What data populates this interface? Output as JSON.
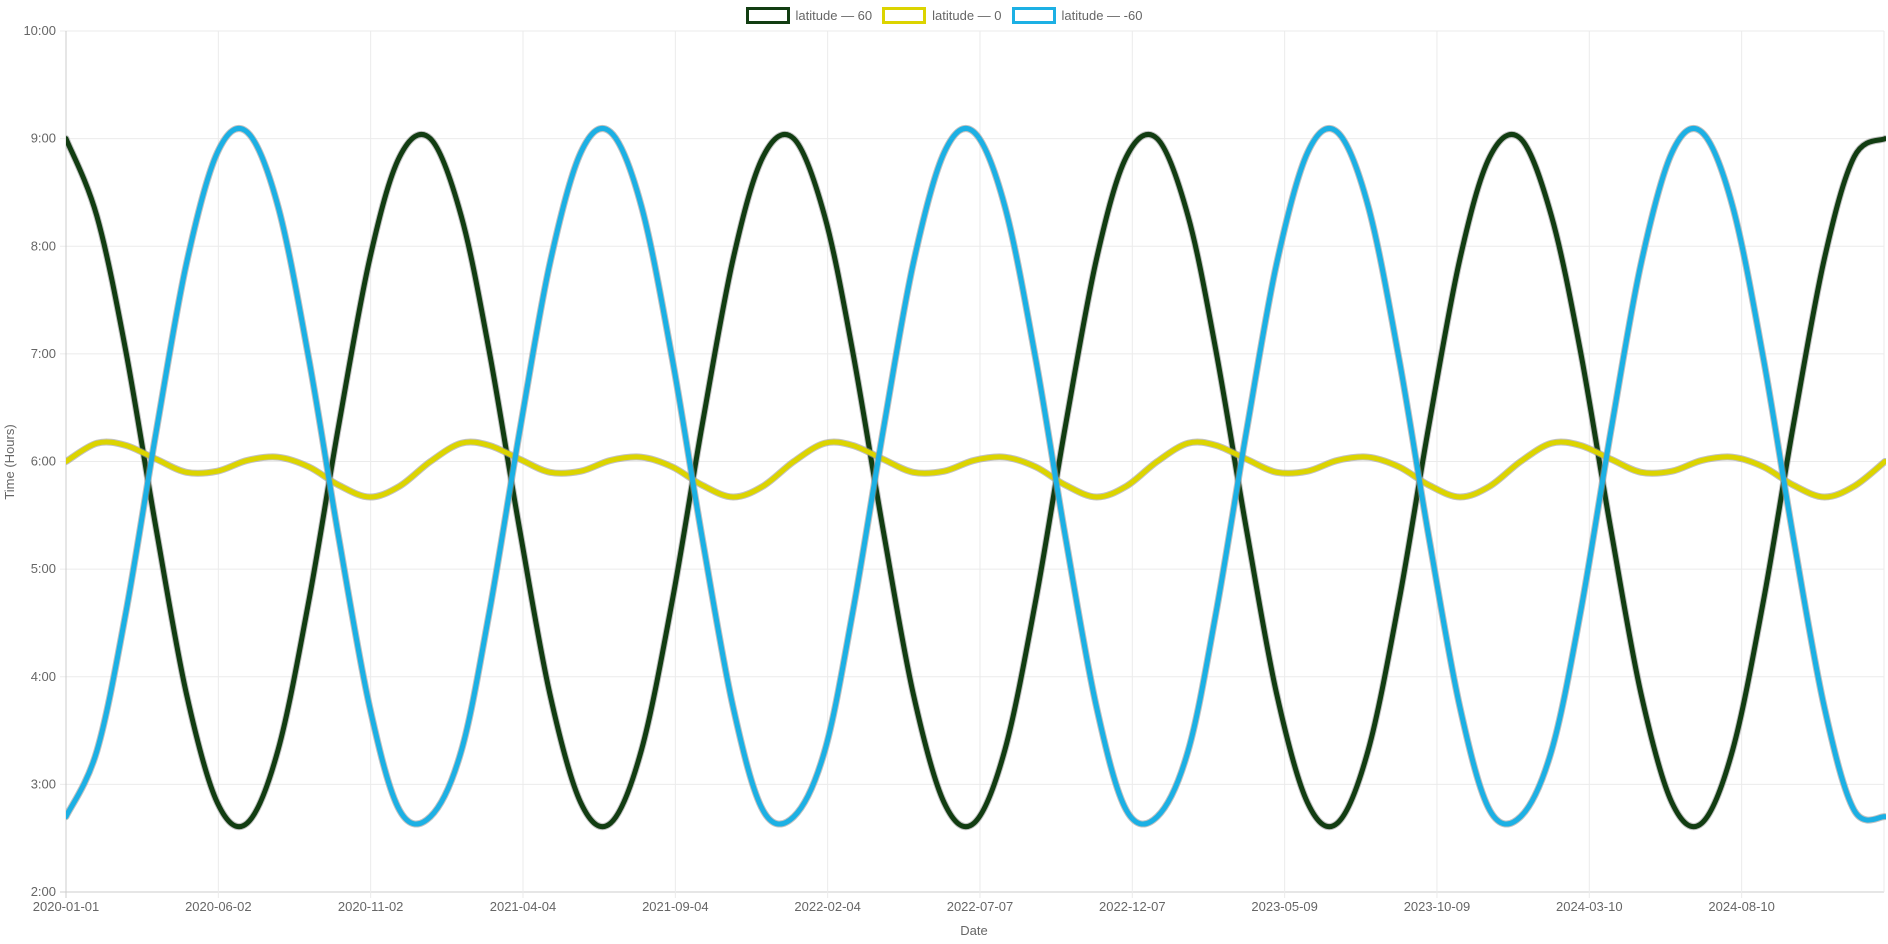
{
  "chart_data": {
    "type": "line",
    "xlabel": "Date",
    "ylabel": "Time (Hours)",
    "ylim": [
      2,
      10
    ],
    "xlim": [
      "2020-01-01",
      "2024-12-31"
    ],
    "y_ticks": [
      "2:00",
      "3:00",
      "4:00",
      "5:00",
      "6:00",
      "7:00",
      "8:00",
      "9:00",
      "10:00"
    ],
    "x_ticks": [
      "2020-01-01",
      "2020-06-02",
      "2020-11-02",
      "2021-04-04",
      "2021-09-04",
      "2022-02-04",
      "2022-07-07",
      "2022-12-07",
      "2023-05-09",
      "2023-10-09",
      "2024-03-10",
      "2024-08-10"
    ],
    "grid": true,
    "legend_position": "top-center",
    "x_start": "2020-01-01",
    "x_step": "1 month",
    "series": [
      {
        "name": "latitude — 60",
        "color": "#123d12",
        "values": [
          9.0,
          8.28,
          7.03,
          5.35,
          3.84,
          2.83,
          2.64,
          3.32,
          4.71,
          6.34,
          7.88,
          8.83,
          9.0,
          8.28,
          7.03,
          5.35,
          3.84,
          2.83,
          2.64,
          3.32,
          4.71,
          6.34,
          7.88,
          8.83,
          9.0,
          8.28,
          7.03,
          5.35,
          3.84,
          2.83,
          2.64,
          3.32,
          4.71,
          6.34,
          7.88,
          8.83,
          9.0,
          8.28,
          7.03,
          5.35,
          3.84,
          2.83,
          2.64,
          3.32,
          4.71,
          6.34,
          7.88,
          8.83,
          9.0,
          8.28,
          7.03,
          5.35,
          3.84,
          2.83,
          2.64,
          3.32,
          4.71,
          6.34,
          7.88,
          8.83,
          9.0
        ]
      },
      {
        "name": "latitude — 0",
        "color": "#dcd400",
        "values": [
          6.0,
          6.17,
          6.15,
          6.02,
          5.9,
          5.91,
          6.01,
          6.04,
          5.95,
          5.78,
          5.67,
          5.77,
          6.0,
          6.17,
          6.15,
          6.02,
          5.9,
          5.91,
          6.01,
          6.04,
          5.95,
          5.78,
          5.67,
          5.77,
          6.0,
          6.17,
          6.15,
          6.02,
          5.9,
          5.91,
          6.01,
          6.04,
          5.95,
          5.78,
          5.67,
          5.77,
          6.0,
          6.17,
          6.15,
          6.02,
          5.9,
          5.91,
          6.01,
          6.04,
          5.95,
          5.78,
          5.67,
          5.77,
          6.0,
          6.17,
          6.15,
          6.02,
          5.9,
          5.91,
          6.01,
          6.04,
          5.95,
          5.78,
          5.67,
          5.77,
          6.0
        ]
      },
      {
        "name": "latitude — -60",
        "color": "#1cb0e4",
        "values": [
          2.7,
          3.31,
          4.59,
          6.3,
          7.84,
          8.87,
          9.06,
          8.37,
          6.95,
          5.29,
          3.72,
          2.76,
          2.7,
          3.31,
          4.59,
          6.3,
          7.84,
          8.87,
          9.06,
          8.37,
          6.95,
          5.29,
          3.72,
          2.76,
          2.7,
          3.31,
          4.59,
          6.3,
          7.84,
          8.87,
          9.06,
          8.37,
          6.95,
          5.29,
          3.72,
          2.76,
          2.7,
          3.31,
          4.59,
          6.3,
          7.84,
          8.87,
          9.06,
          8.37,
          6.95,
          5.29,
          3.72,
          2.76,
          2.7,
          3.31,
          4.59,
          6.3,
          7.84,
          8.87,
          9.06,
          8.37,
          6.95,
          5.29,
          3.72,
          2.76,
          2.7
        ]
      }
    ]
  }
}
